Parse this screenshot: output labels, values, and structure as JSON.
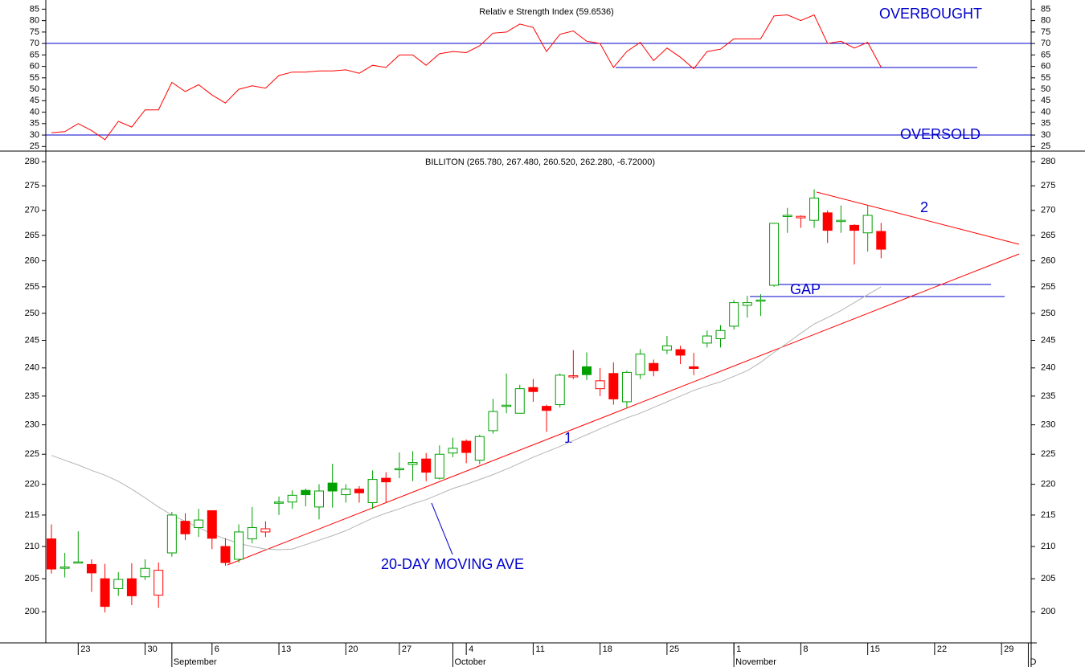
{
  "chart_data": [
    {
      "type": "line",
      "title": "Relativ e Strength Index (59.6536)",
      "color": "#ff0000",
      "values": [
        31,
        31.5,
        35,
        32,
        28,
        36,
        33.5,
        41,
        41,
        53,
        49,
        52,
        47.5,
        44,
        50,
        51.5,
        50.5,
        56,
        57.5,
        57.5,
        58,
        58,
        58.5,
        57,
        60.5,
        59.5,
        65,
        65,
        60.5,
        65.5,
        66.5,
        66,
        69,
        74.5,
        75,
        78.5,
        77,
        66.5,
        74,
        75.5,
        71,
        70,
        59.5,
        66.5,
        70.5,
        62.5,
        68,
        64,
        59,
        66.5,
        67.5,
        72,
        72,
        72,
        82,
        82.5,
        80,
        82.5,
        70,
        71,
        68,
        70.5,
        59.6536,
        null,
        null,
        null,
        null,
        null,
        null,
        null,
        null,
        null,
        null,
        null
      ],
      "ylim": [
        23,
        89
      ],
      "yticks": [
        25,
        30,
        35,
        40,
        45,
        50,
        55,
        60,
        65,
        70,
        75,
        80,
        85
      ],
      "annotations": [
        "OVERBOUGHT",
        "OVERSOLD"
      ]
    },
    {
      "type": "candlestick",
      "title": "BILLITON (265.780, 267.480, 260.520, 262.280, -6.72000)",
      "categories": [
        null,
        null,
        "23",
        null,
        null,
        null,
        null,
        "30",
        null,
        null,
        null,
        null,
        "6",
        null,
        null,
        null,
        null,
        "13",
        null,
        null,
        null,
        null,
        "20",
        null,
        null,
        null,
        "27",
        null,
        null,
        null,
        null,
        "4",
        null,
        null,
        null,
        null,
        "11",
        null,
        null,
        null,
        null,
        "18",
        null,
        null,
        null,
        null,
        "25",
        null,
        null,
        null,
        null,
        "1",
        null,
        null,
        null,
        null,
        "8",
        null,
        null,
        null,
        null,
        "15",
        null,
        null,
        null,
        null,
        "22",
        null,
        null,
        null,
        null,
        "29",
        null,
        null
      ],
      "months": [
        null,
        null,
        null,
        null,
        null,
        null,
        null,
        null,
        null,
        "September",
        null,
        null,
        null,
        null,
        null,
        null,
        null,
        null,
        null,
        null,
        null,
        null,
        null,
        null,
        null,
        null,
        null,
        null,
        null,
        null,
        "October",
        null,
        null,
        null,
        null,
        null,
        null,
        null,
        null,
        null,
        null,
        null,
        null,
        null,
        null,
        null,
        null,
        null,
        null,
        null,
        null,
        "November",
        null,
        null,
        null,
        null,
        null,
        null,
        null,
        null,
        null,
        null,
        null,
        null,
        null,
        null,
        null,
        null,
        null,
        null,
        null,
        null,
        null,
        "D"
      ],
      "open": [
        211.2,
        206.7,
        207.5,
        207.2,
        205,
        203.5,
        205,
        205.3,
        202.5,
        209,
        214,
        213,
        215.7,
        210,
        208,
        211.2,
        212.3,
        217,
        217.1,
        219,
        216.3,
        220.2,
        218.3,
        219.2,
        217,
        221,
        222.5,
        223.3,
        224.2,
        221,
        225.2,
        227.2,
        224,
        229,
        233.2,
        232,
        236.5,
        233.2,
        233.5,
        238.5,
        240.2,
        236.3,
        239,
        234,
        238.8,
        240.8,
        243.2,
        243.3,
        240.2,
        244.5,
        245.3,
        247.6,
        251.5,
        252.3,
        255.3,
        268.8,
        268.5,
        268,
        269.5,
        267.8,
        267,
        265.5,
        265.78,
        null,
        null,
        null,
        null,
        null,
        null,
        null,
        null,
        null,
        null,
        null
      ],
      "high": [
        213.5,
        209,
        212.4,
        208,
        207.3,
        206,
        207.4,
        208,
        207.5,
        215.5,
        215.3,
        216,
        215.7,
        211.3,
        213.5,
        216.3,
        214,
        218,
        219,
        219.3,
        220,
        223.4,
        220,
        219.7,
        222.3,
        222,
        225.3,
        225.5,
        225.2,
        226.5,
        227.8,
        227.5,
        228.3,
        234.5,
        239,
        237,
        238,
        233.5,
        239,
        243.2,
        242.8,
        240,
        241,
        239.5,
        243.4,
        241.5,
        245.8,
        244,
        242.7,
        246.8,
        247.8,
        252.5,
        253.3,
        253.6,
        267.5,
        270.5,
        269,
        274.3,
        270,
        271,
        267.2,
        271,
        267.48,
        null,
        null,
        null,
        null,
        null,
        null,
        null,
        null,
        null,
        null,
        null
      ],
      "low": [
        205.8,
        205.2,
        207.5,
        203,
        199.9,
        202.4,
        201,
        204.8,
        200.6,
        208.4,
        211,
        211.5,
        209.6,
        207,
        207.5,
        210.5,
        211.5,
        215,
        216,
        216.4,
        214.3,
        216.2,
        217,
        217,
        216,
        217,
        221,
        220.5,
        220.5,
        220.8,
        224.5,
        223.5,
        223.3,
        228.5,
        232,
        232,
        234,
        228.8,
        233,
        238,
        237.8,
        235,
        233.5,
        233,
        238,
        238.5,
        242.5,
        240.7,
        238.7,
        243.7,
        243.7,
        247,
        249.2,
        249.5,
        255,
        265.5,
        266.5,
        266.5,
        263.5,
        265.5,
        259.3,
        261.8,
        260.52,
        null,
        null,
        null,
        null,
        null,
        null,
        null,
        null,
        null,
        null,
        null
      ],
      "close": [
        206.5,
        206.8,
        207.6,
        205.9,
        200.8,
        204.9,
        202.4,
        206.6,
        206.3,
        215,
        212,
        214.2,
        211.3,
        207.5,
        212.3,
        213,
        212.8,
        217.1,
        218.2,
        218.3,
        218.9,
        218.9,
        219.2,
        218.6,
        220.8,
        220.4,
        222.6,
        223.6,
        222,
        225,
        226,
        225.3,
        228,
        232.3,
        233.4,
        236.3,
        235.8,
        232.5,
        238.7,
        238.6,
        238.8,
        237.7,
        234.5,
        239.2,
        242.5,
        239.5,
        244,
        242.3,
        239.9,
        245.8,
        246.8,
        252,
        252,
        252.5,
        267.4,
        269,
        268.8,
        272.5,
        266,
        268,
        266,
        269,
        262.28,
        null,
        null,
        null,
        null,
        null,
        null,
        null,
        null,
        null,
        null,
        null
      ],
      "up_color": "#00a000",
      "down_color": "#ff0000",
      "ma": {
        "color": "#b4b4b4",
        "values": [
          224.8,
          224,
          223.2,
          222.3,
          221.5,
          220.5,
          219.2,
          217.8,
          216.3,
          215,
          214,
          213,
          212,
          211.2,
          210.5,
          210,
          209.6,
          209.5,
          209.6,
          210.3,
          211,
          211.7,
          212.5,
          213.5,
          214.5,
          215.3,
          216,
          216.8,
          217.5,
          218.4,
          219.3,
          220,
          220.8,
          221.6,
          222.5,
          223.5,
          224.5,
          225.4,
          226.3,
          227.3,
          228.3,
          229.3,
          230.3,
          231.2,
          232,
          233,
          234,
          235,
          236,
          236.8,
          237.5,
          238.5,
          239.5,
          241,
          242.8,
          244.5,
          246.3,
          248,
          249.2,
          250.5,
          252,
          253.5,
          255,
          null,
          null,
          null,
          null,
          null,
          null,
          null,
          null,
          null,
          null,
          null
        ]
      },
      "ylim": [
        195.4,
        281.9
      ],
      "log_scale": true,
      "yticks": [
        200,
        205,
        210,
        215,
        220,
        225,
        230,
        235,
        240,
        245,
        250,
        255,
        260,
        265,
        270,
        275,
        280
      ],
      "annotations": [
        "GAP",
        "1",
        "2",
        "20-DAY MOVING AVE"
      ]
    }
  ]
}
